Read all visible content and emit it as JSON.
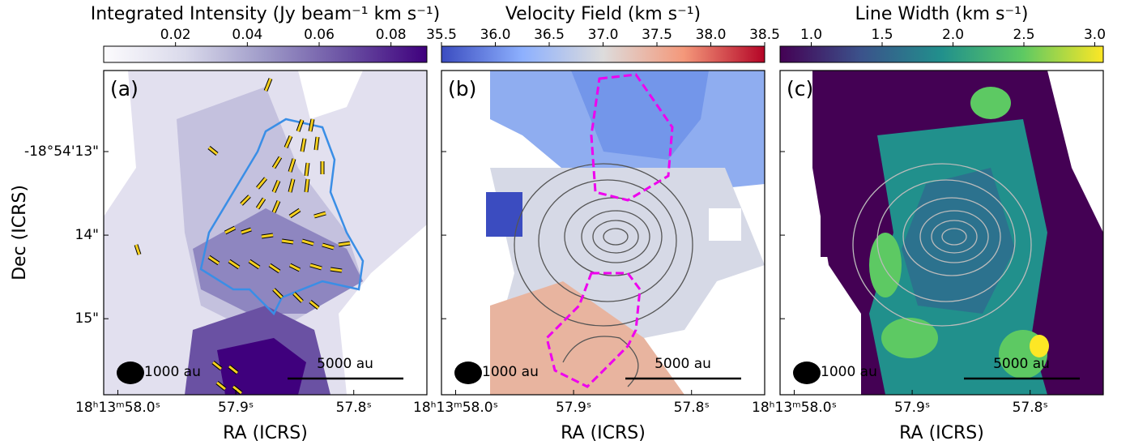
{
  "chart_data": [
    {
      "type": "image",
      "panel_label": "(a)",
      "colorbar": {
        "title": "Integrated Intensity (Jy beam⁻¹ km s⁻¹)",
        "lim": [
          0,
          0.09
        ],
        "ticks": [
          0.02,
          0.04,
          0.06,
          0.08
        ],
        "colors": [
          "#fcfbfd",
          "#dadaeb",
          "#9e9ac8",
          "#6a51a3",
          "#3f007d"
        ]
      },
      "xlabel": "RA (ICRS)",
      "ylabel": "Dec (ICRS)",
      "xlim": [
        58.012,
        57.738
      ],
      "xticks": [
        {
          "value": 58.0,
          "label": "18ʰ13ᵐ58.0ˢ"
        },
        {
          "value": 57.9,
          "label": "57.9ˢ"
        },
        {
          "value": 57.8,
          "label": "57.8ˢ"
        }
      ],
      "ylim": [
        15.91,
        12.03
      ],
      "yticks": [
        {
          "value": 13,
          "label": "-18°54'13\""
        },
        {
          "value": 14,
          "label": "14\""
        },
        {
          "value": 15,
          "label": "15\""
        }
      ],
      "annotations": [
        "1000 au",
        "5000 au"
      ]
    },
    {
      "type": "image",
      "panel_label": "(b)",
      "colorbar": {
        "title": "Velocity Field (km s⁻¹)",
        "lim": [
          35.5,
          38.5
        ],
        "ticks": [
          35.5,
          {
            "value": 36.0,
            "label": "36.0"
          },
          36.5,
          {
            "value": 37.0,
            "label": "37.0"
          },
          37.5,
          {
            "value": 38.0,
            "label": "38.0"
          },
          38.5
        ],
        "colors": [
          "#3b4cc0",
          "#8db0fe",
          "#dddcdc",
          "#f4987a",
          "#b40426"
        ]
      },
      "xlabel": "RA (ICRS)",
      "xlim": [
        58.012,
        57.738
      ],
      "xticks": [
        {
          "value": 58.0,
          "label": "18ʰ13ᵐ58.0ˢ"
        },
        {
          "value": 57.9,
          "label": "57.9ˢ"
        },
        {
          "value": 57.8,
          "label": "57.8ˢ"
        }
      ],
      "ylim": [
        15.91,
        12.03
      ],
      "yticks": [
        13,
        14,
        15
      ],
      "annotations": [
        "1000 au",
        "5000 au"
      ]
    },
    {
      "type": "image",
      "panel_label": "(c)",
      "colorbar": {
        "title": "Line Width (km s⁻¹)",
        "lim": [
          0.78,
          3.06
        ],
        "ticks": [
          {
            "value": 1.0,
            "label": "1.0"
          },
          1.5,
          {
            "value": 2.0,
            "label": "2.0"
          },
          2.5,
          {
            "value": 3.0,
            "label": "3.0"
          }
        ],
        "colors": [
          "#440154",
          "#3b528b",
          "#21908c",
          "#5dc963",
          "#fde725"
        ]
      },
      "xlabel": "RA (ICRS)",
      "xlim": [
        58.012,
        57.738
      ],
      "xticks": [
        {
          "value": 58.0,
          "label": "18ʰ13ᵐ58.0ˢ"
        },
        {
          "value": 57.9,
          "label": "57.9ˢ"
        },
        {
          "value": 57.8,
          "label": "57.8ˢ"
        }
      ],
      "ylim": [
        15.91,
        12.03
      ],
      "yticks": [
        13,
        14,
        15
      ],
      "annotations": [
        "1000 au",
        "5000 au"
      ]
    }
  ]
}
